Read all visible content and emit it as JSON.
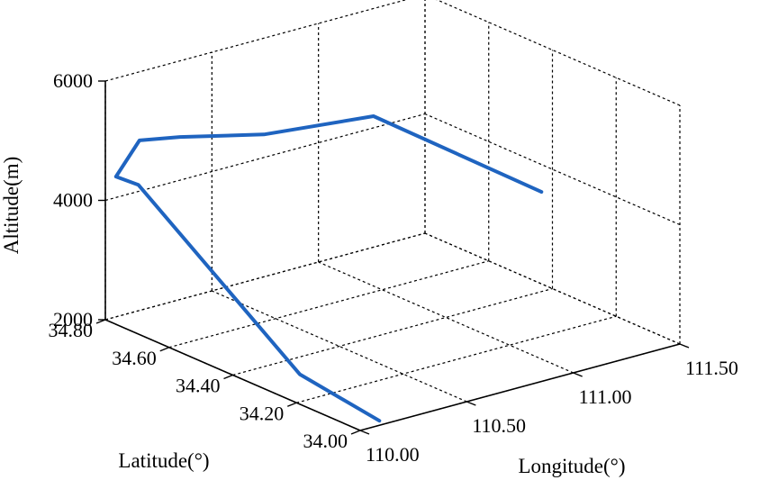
{
  "chart_data": {
    "type": "line3d",
    "xlabel": "Longitude(°)",
    "ylabel": "Latitude(°)",
    "zlabel": "Altitude(m)",
    "xticks": [
      "110.00",
      "110.50",
      "111.00",
      "111.50"
    ],
    "yticks": [
      "34.00",
      "34.20",
      "34.40",
      "34.60",
      "34.80"
    ],
    "zticks": [
      "2000",
      "4000",
      "6000"
    ],
    "xlim": [
      110.0,
      111.5
    ],
    "ylim": [
      34.0,
      34.8
    ],
    "zlim": [
      2000,
      6000
    ],
    "grid": true,
    "series": [
      {
        "color": "#1f64c0",
        "points": [
          {
            "lon": 110.12,
            "lat": 34.02,
            "alt": 2000
          },
          {
            "lon": 110.12,
            "lat": 34.27,
            "alt": 2200
          },
          {
            "lon": 110.08,
            "lat": 34.75,
            "alt": 4300
          },
          {
            "lon": 110.05,
            "lat": 34.8,
            "alt": 4350
          },
          {
            "lon": 110.16,
            "lat": 34.8,
            "alt": 4850
          },
          {
            "lon": 110.32,
            "lat": 34.78,
            "alt": 4800
          },
          {
            "lon": 110.52,
            "lat": 34.65,
            "alt": 4950
          },
          {
            "lon": 110.84,
            "lat": 34.52,
            "alt": 5250
          },
          {
            "lon": 111.0,
            "lat": 34.1,
            "alt": 4800
          }
        ]
      }
    ]
  }
}
